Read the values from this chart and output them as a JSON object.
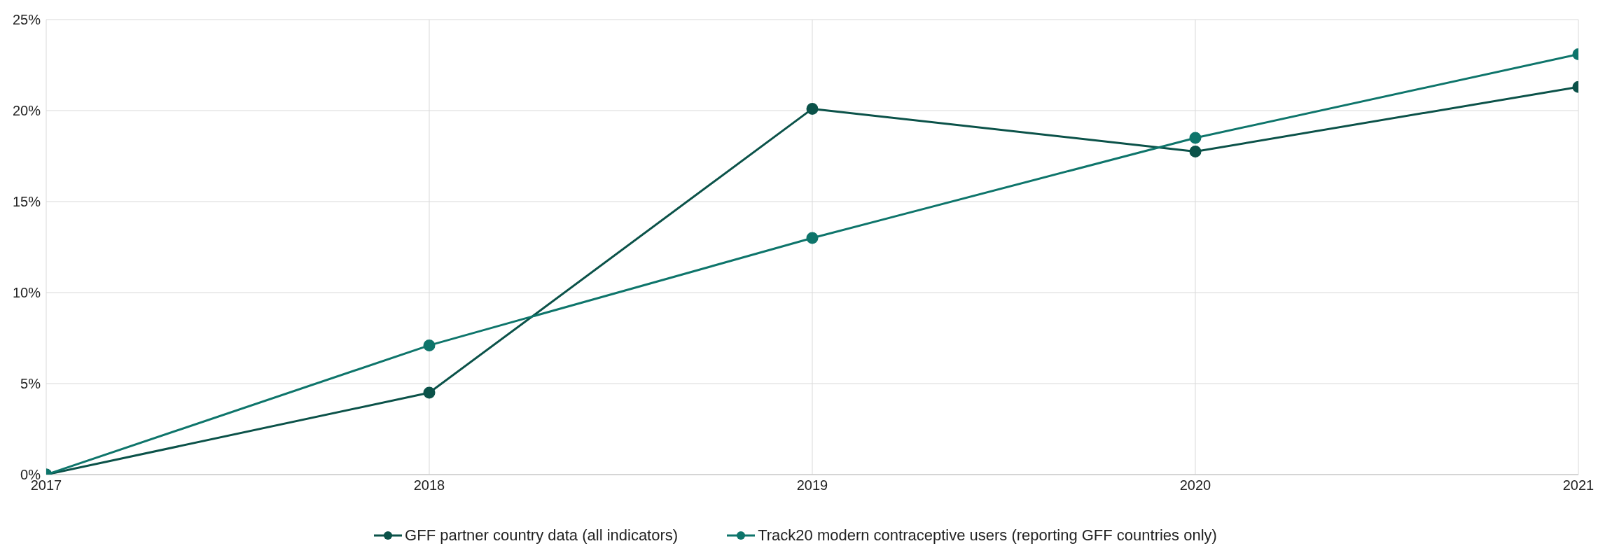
{
  "chart_data": {
    "type": "line",
    "categories": [
      "2017",
      "2018",
      "2019",
      "2020",
      "2021"
    ],
    "series": [
      {
        "name": "GFF partner country data (all indicators)",
        "color": "#0b5249",
        "values": [
          0,
          4.5,
          20.1,
          17.75,
          21.3
        ]
      },
      {
        "name": "Track20 modern contraceptive users (reporting GFF countries only)",
        "color": "#0e756b",
        "values": [
          0,
          7.1,
          13.0,
          18.5,
          23.1
        ]
      }
    ],
    "ylim": [
      0,
      25
    ],
    "yticks": [
      {
        "value": 0,
        "label": "0%"
      },
      {
        "value": 5,
        "label": "5%"
      },
      {
        "value": 10,
        "label": "10%"
      },
      {
        "value": 15,
        "label": "15%"
      },
      {
        "value": 20,
        "label": "20%"
      },
      {
        "value": 25,
        "label": "25%"
      }
    ],
    "grid": true,
    "legend": "bottom",
    "marker": "circle",
    "line_style": "solid"
  }
}
